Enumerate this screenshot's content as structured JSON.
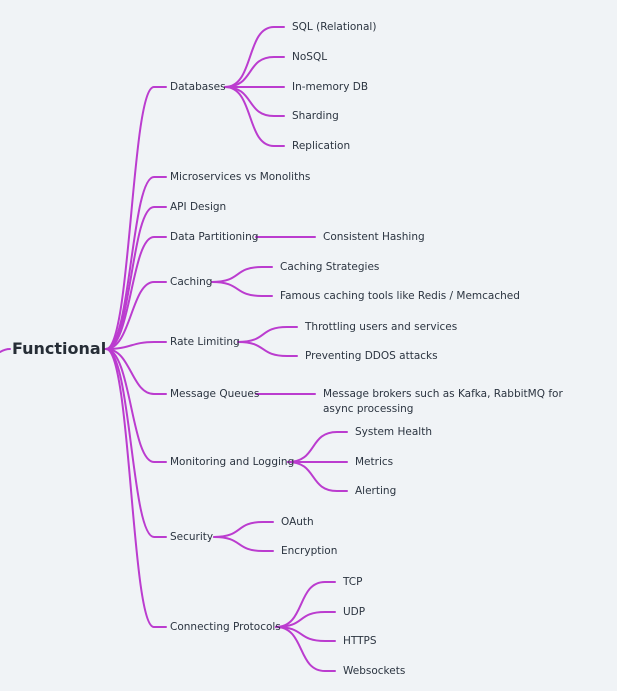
{
  "diagram": {
    "root": "Functional",
    "edge_color": "#bb3ccf",
    "branches": [
      {
        "label": "Databases",
        "children": [
          "SQL (Relational)",
          "NoSQL",
          "In-memory DB",
          "Sharding",
          "Replication"
        ]
      },
      {
        "label": "Microservices vs Monoliths",
        "children": []
      },
      {
        "label": "API Design",
        "children": []
      },
      {
        "label": "Data Partitioning",
        "children": [
          "Consistent Hashing"
        ]
      },
      {
        "label": "Caching",
        "children": [
          "Caching Strategies",
          "Famous caching tools like Redis / Memcached"
        ]
      },
      {
        "label": "Rate Limiting",
        "children": [
          "Throttling users and services",
          "Preventing DDOS attacks"
        ]
      },
      {
        "label": "Message Queues",
        "children": [
          "Message brokers such as Kafka, RabbitMQ for async processing"
        ]
      },
      {
        "label": "Monitoring and Logging",
        "children": [
          "System Health",
          "Metrics",
          "Alerting"
        ]
      },
      {
        "label": "Security",
        "children": [
          "OAuth",
          "Encryption"
        ]
      },
      {
        "label": "Connecting Protocols",
        "children": [
          "TCP",
          "UDP",
          "HTTPS",
          "Websockets"
        ]
      }
    ]
  }
}
